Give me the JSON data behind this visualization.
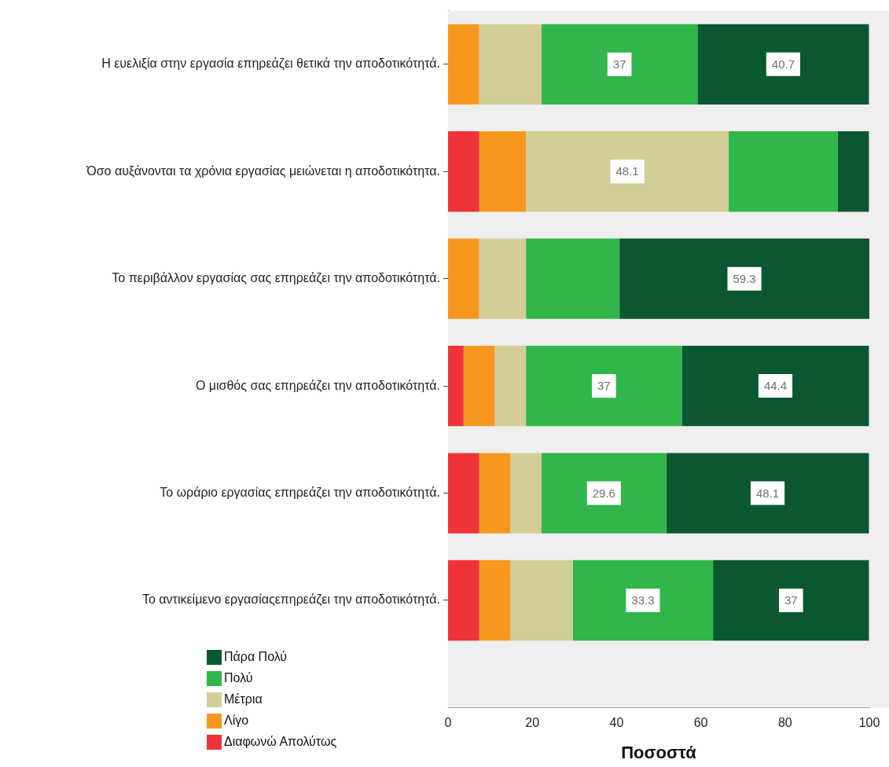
{
  "chart_data": {
    "type": "bar",
    "orientation": "horizontal",
    "stacked": true,
    "xlabel": "Ποσοστά",
    "categories": [
      "Η ευελιξία στην εργασία επηρεάζει θετικά την αποδοτικότητά.",
      "Όσο αυξάνονται τα χρόνια εργασίας μειώνεται η αποδοτικότητα.",
      "Το περιβάλλον εργασίας σας επηρεάζει την αποδοτικότητά.",
      "Ο μισθός σας επηρεάζει την αποδοτικότητά.",
      "Το ωράριο εργασίας επηρεάζει την αποδοτικότητά.",
      "Το αντικείμενο εργασίαςεπηρεάζει την αποδοτικότητά."
    ],
    "series": [
      {
        "name": "Διαφωνώ Απολύτως",
        "color": "#ee333b",
        "values": [
          null,
          7.4,
          null,
          3.7,
          7.4,
          7.4
        ]
      },
      {
        "name": "Λίγο",
        "color": "#f7971e",
        "values": [
          7.4,
          11.1,
          7.4,
          7.4,
          7.4,
          7.4
        ]
      },
      {
        "name": "Μέτρια",
        "color": "#d3ce98",
        "values": [
          14.8,
          48.1,
          11.1,
          7.4,
          7.4,
          14.8
        ],
        "value_labels": [
          null,
          "48.1",
          null,
          null,
          null,
          null
        ]
      },
      {
        "name": "Πολύ",
        "color": "#30b64a",
        "values": [
          37,
          25.9,
          22.2,
          37,
          29.6,
          33.3
        ],
        "value_labels": [
          "37",
          null,
          null,
          "37",
          "29.6",
          "33.3"
        ]
      },
      {
        "name": "Πάρα Πολύ",
        "color": "#0b5730",
        "values": [
          40.7,
          7.4,
          59.3,
          44.4,
          48.1,
          37
        ],
        "value_labels": [
          "40.7",
          null,
          "59.3",
          "44.4",
          "48.1",
          "37"
        ]
      }
    ],
    "xlim": [
      0,
      100
    ],
    "xticks": [
      0,
      20,
      40,
      60,
      80,
      100
    ],
    "grid": false,
    "legend": "bottom left"
  }
}
